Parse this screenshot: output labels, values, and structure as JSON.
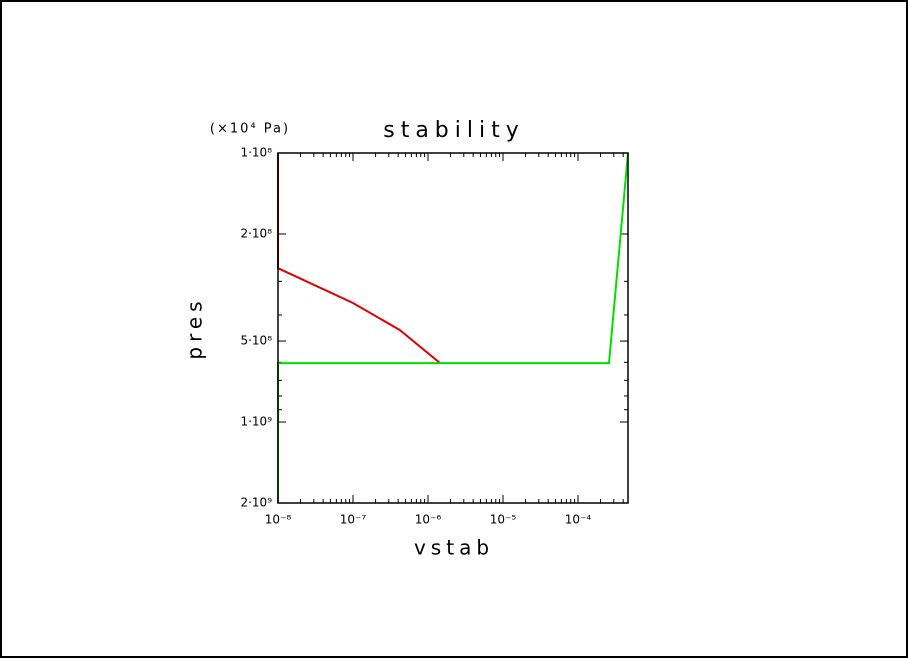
{
  "chart_data": {
    "type": "line",
    "title": "stability",
    "x_label": "vstab",
    "y_label": "pres",
    "y_unit": "(×10⁴ Pa)",
    "x_log": true,
    "y_log": true,
    "y_inverted": true,
    "xlim": [
      1e-08,
      0.000464
    ],
    "ylim": [
      100000000,
      2000000000
    ],
    "xticks": [
      {
        "value": 1e-08,
        "label": "10⁻⁸"
      },
      {
        "value": 1e-07,
        "label": "10⁻⁷"
      },
      {
        "value": 1e-06,
        "label": "10⁻⁶"
      },
      {
        "value": 1e-05,
        "label": "10⁻⁵"
      },
      {
        "value": 0.0001,
        "label": "10⁻⁴"
      }
    ],
    "yticks": [
      {
        "value": 100000000,
        "label": "1·10⁸"
      },
      {
        "value": 200000000,
        "label": "2·10⁸"
      },
      {
        "value": 500000000,
        "label": "5·10⁸"
      },
      {
        "value": 1000000000,
        "label": "1·10⁹"
      },
      {
        "value": 2000000000,
        "label": "2·10⁹"
      }
    ],
    "series": [
      {
        "color": "#e00000",
        "x": [
          1e-08,
          1e-08,
          1e-07,
          4.2e-07,
          1.45e-06
        ],
        "values": [
          100000000,
          268000000,
          361000000,
          455000000,
          604000000
        ]
      },
      {
        "color": "#00e000",
        "x": [
          1e-08,
          1e-08,
          0.000259,
          0.000464
        ],
        "values": [
          2000000000,
          604000000,
          604000000,
          100000000
        ]
      }
    ]
  }
}
